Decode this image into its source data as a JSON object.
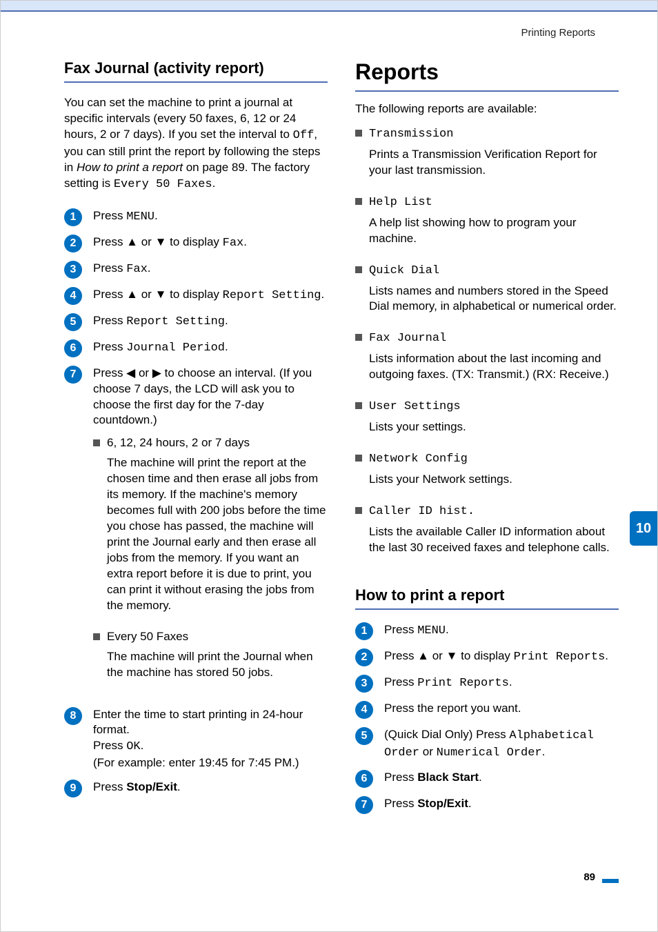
{
  "header": {
    "section_label": "Printing Reports"
  },
  "footer": {
    "page_number": "89"
  },
  "tab": {
    "chapter": "10"
  },
  "left": {
    "title": "Fax Journal (activity report)",
    "intro_parts": {
      "p1": "You can set the machine to print a journal at specific intervals (every 50 faxes, 6, 12 or 24 hours, 2 or 7 days). If you set the interval to ",
      "code_off": "Off",
      "p2": ", you can still print the report by following the steps in ",
      "italic": "How to print a report",
      "p3": " on page 89. The factory setting is ",
      "code_default": "Every 50 Faxes",
      "p4": "."
    },
    "steps": {
      "1": {
        "pre": "Press ",
        "code": "MENU",
        "post": "."
      },
      "2": {
        "pre": "Press ▲ or ▼ to display ",
        "code": "Fax",
        "post": "."
      },
      "3": {
        "pre": "Press ",
        "code": "Fax",
        "post": "."
      },
      "4": {
        "pre": "Press ▲ or ▼ to display ",
        "code": "Report Setting",
        "post": "."
      },
      "5": {
        "pre": "Press ",
        "code": "Report Setting",
        "post": "."
      },
      "6": {
        "pre": "Press ",
        "code": "Journal Period",
        "post": "."
      },
      "7": {
        "text": "Press ◀ or ▶ to choose an interval. (If you choose 7 days, the LCD will ask you to choose the first day for the 7-day countdown.)",
        "sub1_title": "6, 12, 24 hours, 2 or 7 days",
        "sub1_desc": "The machine will print the report at the chosen time and then erase all jobs from its memory. If the machine's memory becomes full with 200 jobs before the time you chose has passed, the machine will print the Journal early and then erase all jobs from the memory. If you want an extra report before it is due to print, you can print it without erasing the jobs from the memory.",
        "sub2_title": "Every 50 Faxes",
        "sub2_desc": "The machine will print the Journal when the machine has stored 50 jobs."
      },
      "8": {
        "l1": "Enter the time to start printing in 24-hour format.",
        "l2_pre": "Press ",
        "l2_code": "OK",
        "l2_post": ".",
        "l3": "(For example: enter 19:45 for 7:45 PM.)"
      },
      "9": {
        "pre": "Press ",
        "bold": "Stop/Exit",
        "post": "."
      }
    }
  },
  "right": {
    "title": "Reports",
    "intro": "The following reports are available:",
    "items": {
      "1": {
        "code": "Transmission",
        "desc": "Prints a Transmission Verification Report for your last transmission."
      },
      "2": {
        "code": "Help List",
        "desc": "A help list showing how to program your machine."
      },
      "3": {
        "code": "Quick Dial",
        "desc": "Lists names and numbers stored in the Speed Dial memory, in alphabetical or numerical order."
      },
      "4": {
        "code": "Fax Journal",
        "desc": "Lists information about the last incoming and outgoing faxes. (TX: Transmit.) (RX: Receive.)"
      },
      "5": {
        "code": "User Settings",
        "desc": "Lists your settings."
      },
      "6": {
        "code": "Network Config",
        "desc": "Lists your Network settings."
      },
      "7": {
        "code": "Caller ID hist.",
        "desc": "Lists the available Caller ID information about the last 30 received faxes and telephone calls."
      }
    },
    "howto_title": "How to print a report",
    "steps": {
      "1": {
        "pre": "Press ",
        "code": "MENU",
        "post": "."
      },
      "2": {
        "pre": "Press ▲ or ▼ to display ",
        "code": "Print Reports",
        "post": "."
      },
      "3": {
        "pre": "Press ",
        "code": "Print Reports",
        "post": "."
      },
      "4": {
        "text": "Press the report you want."
      },
      "5": {
        "pre": "(Quick Dial Only) Press ",
        "code1": "Alphabetical Order",
        "mid": " or ",
        "code2": "Numerical Order",
        "post": "."
      },
      "6": {
        "pre": "Press ",
        "bold": "Black Start",
        "post": "."
      },
      "7": {
        "pre": "Press ",
        "bold": "Stop/Exit",
        "post": "."
      }
    }
  },
  "colors": {
    "accent": "#4d6db3",
    "bullet": "#0070c0",
    "topband": "#d9e5f9"
  }
}
